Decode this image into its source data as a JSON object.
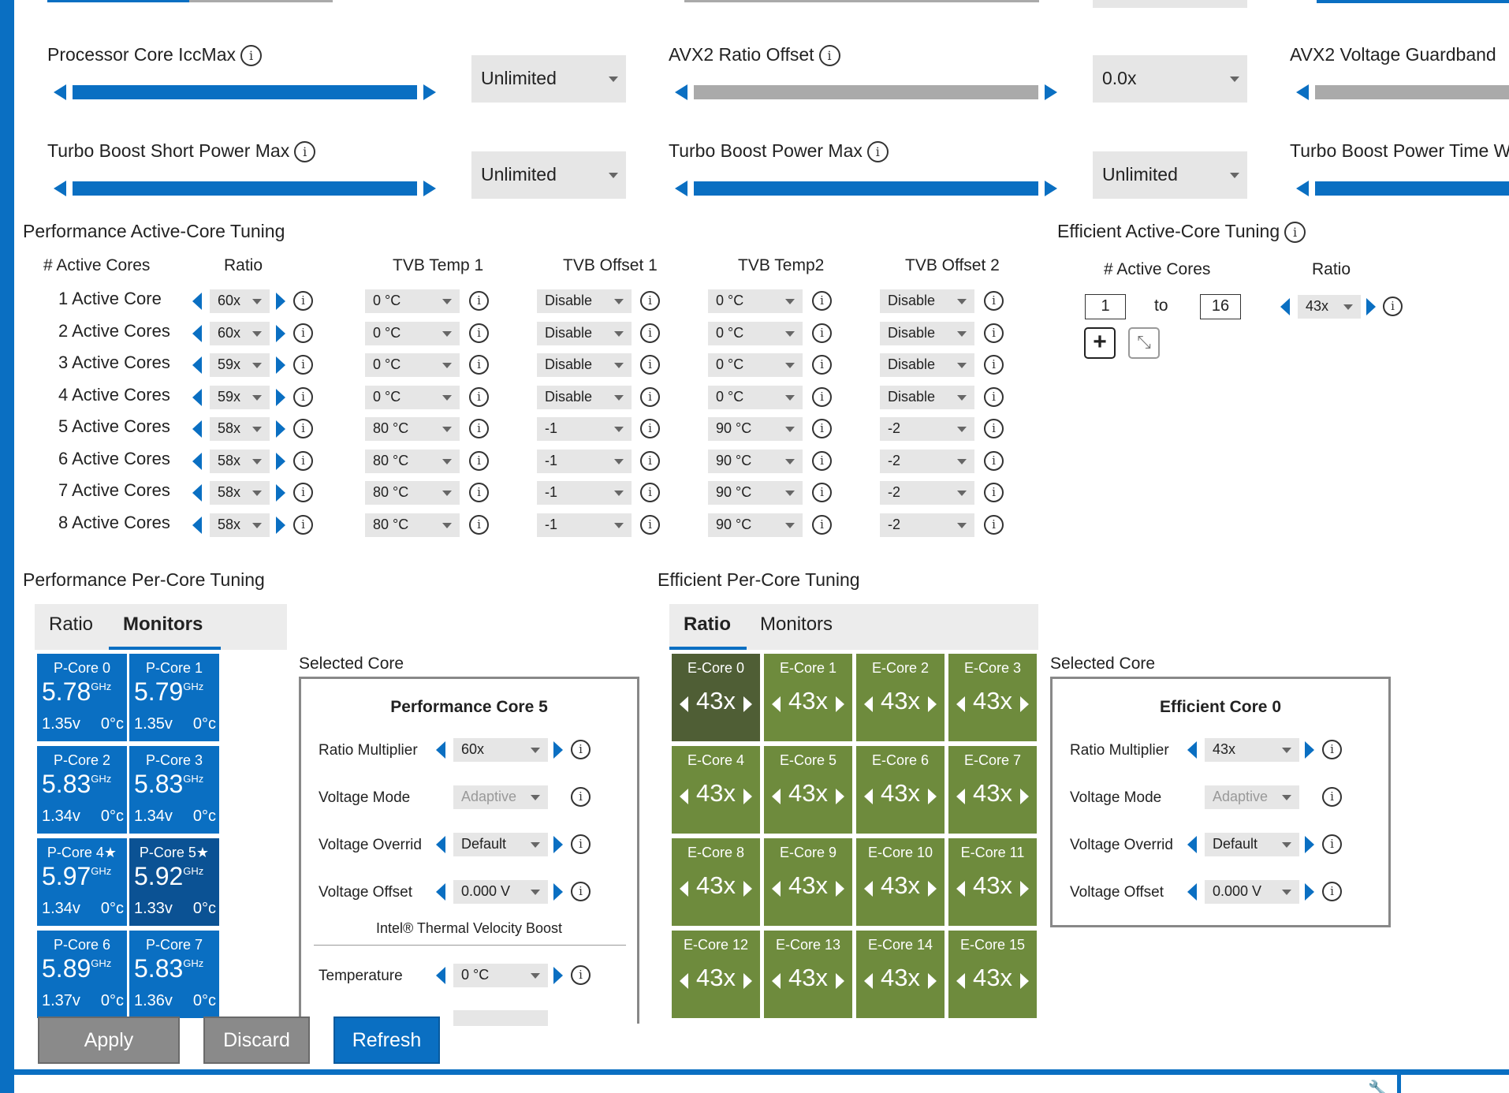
{
  "top_sliders": [
    {
      "label": "Processor Core IccMax",
      "value": "Unlimited"
    },
    {
      "label": "AVX2 Ratio Offset",
      "value": "0.0x"
    },
    {
      "label": "AVX2 Voltage Guardband"
    },
    {
      "label": "Turbo Boost Short Power Max",
      "value": "Unlimited"
    },
    {
      "label": "Turbo Boost Power Max",
      "value": "Unlimited"
    },
    {
      "label": "Turbo Boost Power Time W"
    }
  ],
  "perf_active": {
    "title": "Performance Active-Core Tuning",
    "headers": [
      "# Active Cores",
      "Ratio",
      "TVB Temp 1",
      "TVB Offset 1",
      "TVB Temp2",
      "TVB Offset 2"
    ],
    "rows": [
      {
        "label": "1 Active Core",
        "ratio": "60x",
        "temp1": "0 °C",
        "off1": "Disable",
        "temp2": "0 °C",
        "off2": "Disable"
      },
      {
        "label": "2 Active Cores",
        "ratio": "60x",
        "temp1": "0 °C",
        "off1": "Disable",
        "temp2": "0 °C",
        "off2": "Disable"
      },
      {
        "label": "3 Active Cores",
        "ratio": "59x",
        "temp1": "0 °C",
        "off1": "Disable",
        "temp2": "0 °C",
        "off2": "Disable"
      },
      {
        "label": "4 Active Cores",
        "ratio": "59x",
        "temp1": "0 °C",
        "off1": "Disable",
        "temp2": "0 °C",
        "off2": "Disable"
      },
      {
        "label": "5 Active Cores",
        "ratio": "58x",
        "temp1": "80 °C",
        "off1": "-1",
        "temp2": "90 °C",
        "off2": "-2"
      },
      {
        "label": "6 Active Cores",
        "ratio": "58x",
        "temp1": "80 °C",
        "off1": "-1",
        "temp2": "90 °C",
        "off2": "-2"
      },
      {
        "label": "7 Active Cores",
        "ratio": "58x",
        "temp1": "80 °C",
        "off1": "-1",
        "temp2": "90 °C",
        "off2": "-2"
      },
      {
        "label": "8 Active Cores",
        "ratio": "58x",
        "temp1": "80 °C",
        "off1": "-1",
        "temp2": "90 °C",
        "off2": "-2"
      }
    ]
  },
  "eff_active": {
    "title": "Efficient Active-Core Tuning",
    "headers": [
      "# Active Cores",
      "Ratio"
    ],
    "from": "1",
    "to_label": "to",
    "to": "16",
    "ratio": "43x"
  },
  "perf_per_core": {
    "title": "Performance Per-Core Tuning",
    "tabs": [
      "Ratio",
      "Monitors"
    ],
    "cores": [
      {
        "name": "P-Core 0",
        "freq": "5.78",
        "unit": "GHz",
        "volt": "1.35v",
        "temp": "0°c"
      },
      {
        "name": "P-Core 1",
        "freq": "5.79",
        "unit": "GHz",
        "volt": "1.35v",
        "temp": "0°c"
      },
      {
        "name": "P-Core 2",
        "freq": "5.83",
        "unit": "GHz",
        "volt": "1.34v",
        "temp": "0°c"
      },
      {
        "name": "P-Core 3",
        "freq": "5.83",
        "unit": "GHz",
        "volt": "1.34v",
        "temp": "0°c"
      },
      {
        "name": "P-Core 4★",
        "freq": "5.97",
        "unit": "GHz",
        "volt": "1.34v",
        "temp": "0°c"
      },
      {
        "name": "P-Core 5★",
        "freq": "5.92",
        "unit": "GHz",
        "volt": "1.33v",
        "temp": "0°c"
      },
      {
        "name": "P-Core 6",
        "freq": "5.89",
        "unit": "GHz",
        "volt": "1.37v",
        "temp": "0°c"
      },
      {
        "name": "P-Core 7",
        "freq": "5.83",
        "unit": "GHz",
        "volt": "1.36v",
        "temp": "0°c"
      }
    ]
  },
  "perf_selected": {
    "heading": "Selected Core",
    "title": "Performance Core 5",
    "ratio_label": "Ratio Multiplier",
    "ratio": "60x",
    "vmode_label": "Voltage Mode",
    "vmode": "Adaptive",
    "vover_label": "Voltage Overrid",
    "vover": "Default",
    "voff_label": "Voltage Offset",
    "voff": "0.000 V",
    "tvb_title": "Intel® Thermal Velocity Boost",
    "temp_label": "Temperature",
    "temp": "0 °C"
  },
  "eff_per_core": {
    "title": "Efficient Per-Core Tuning",
    "tabs": [
      "Ratio",
      "Monitors"
    ],
    "cores": [
      {
        "name": "E-Core 0",
        "ratio": "43x"
      },
      {
        "name": "E-Core 1",
        "ratio": "43x"
      },
      {
        "name": "E-Core 2",
        "ratio": "43x"
      },
      {
        "name": "E-Core 3",
        "ratio": "43x"
      },
      {
        "name": "E-Core 4",
        "ratio": "43x"
      },
      {
        "name": "E-Core 5",
        "ratio": "43x"
      },
      {
        "name": "E-Core 6",
        "ratio": "43x"
      },
      {
        "name": "E-Core 7",
        "ratio": "43x"
      },
      {
        "name": "E-Core 8",
        "ratio": "43x"
      },
      {
        "name": "E-Core 9",
        "ratio": "43x"
      },
      {
        "name": "E-Core 10",
        "ratio": "43x"
      },
      {
        "name": "E-Core 11",
        "ratio": "43x"
      },
      {
        "name": "E-Core 12",
        "ratio": "43x"
      },
      {
        "name": "E-Core 13",
        "ratio": "43x"
      },
      {
        "name": "E-Core 14",
        "ratio": "43x"
      },
      {
        "name": "E-Core 15",
        "ratio": "43x"
      }
    ]
  },
  "eff_selected": {
    "heading": "Selected Core",
    "title": "Efficient Core 0",
    "ratio_label": "Ratio Multiplier",
    "ratio": "43x",
    "vmode_label": "Voltage Mode",
    "vmode": "Adaptive",
    "vover_label": "Voltage Overrid",
    "vover": "Default",
    "voff_label": "Voltage Offset",
    "voff": "0.000 V"
  },
  "actions": {
    "apply": "Apply",
    "discard": "Discard",
    "refresh": "Refresh"
  },
  "info_glyph": "i",
  "colors": {
    "accent": "#0a6fc2",
    "pcore_selected": "#0b5294",
    "ecore": "#6e8b3d",
    "ecore_selected": "#4f5e35"
  }
}
